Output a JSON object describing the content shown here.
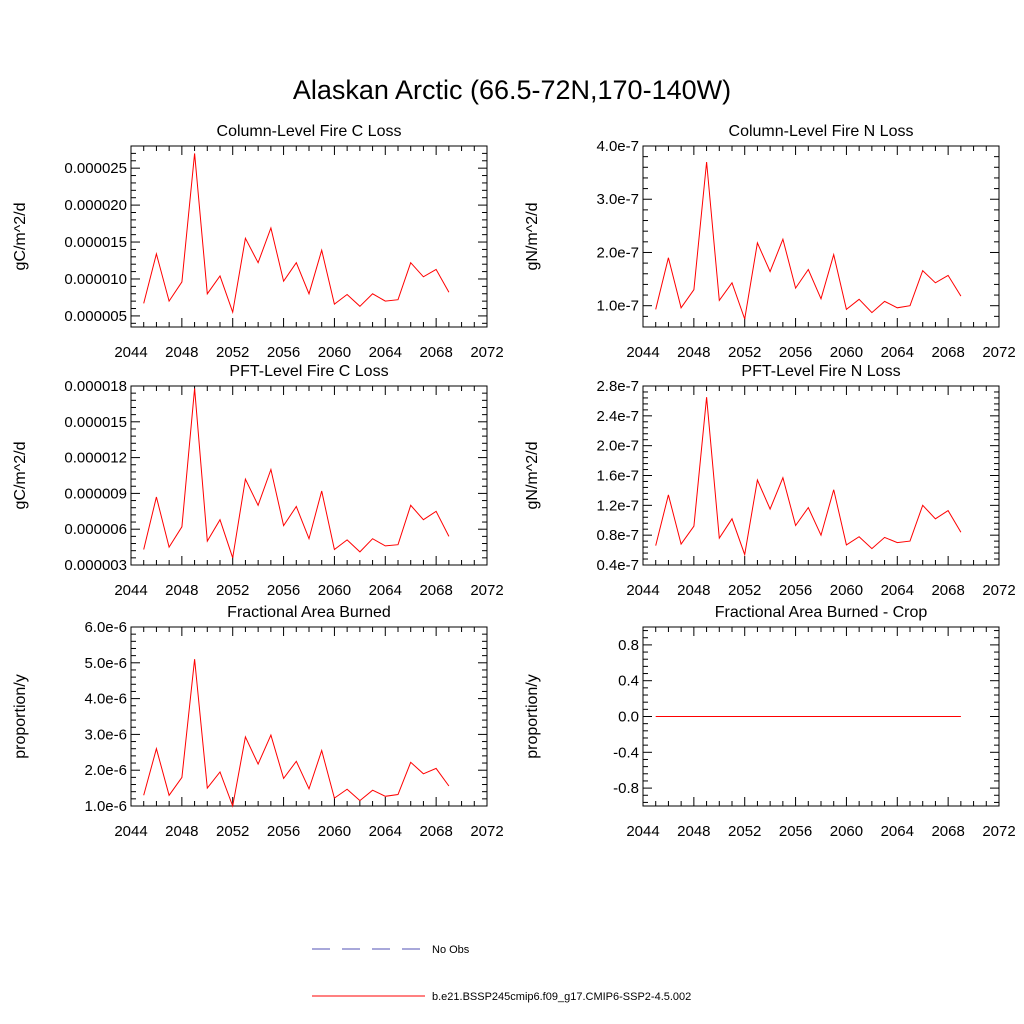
{
  "figure": {
    "title": "Alaskan Arctic (66.5-72N,170-140W)"
  },
  "chart_data": [
    {
      "type": "line",
      "title": "Column-Level Fire C Loss",
      "ylabel": "gC/m^2/d",
      "xlim": [
        2044,
        2072
      ],
      "x_ticks": [
        2044,
        2048,
        2052,
        2056,
        2060,
        2064,
        2068,
        2072
      ],
      "x_tick_labels": [
        "2044",
        "2048",
        "2052",
        "2056",
        "2060",
        "2064",
        "2068",
        "2072"
      ],
      "ylim": [
        3.5e-06,
        2.8e-05
      ],
      "y_ticks": [
        5e-06,
        1e-05,
        1.5e-05,
        2e-05,
        2.5e-05
      ],
      "y_tick_labels": [
        "0.000005",
        "0.000010",
        "0.000015",
        "0.000020",
        "0.000025"
      ],
      "x": [
        2045,
        2046,
        2047,
        2048,
        2049,
        2050,
        2051,
        2052,
        2053,
        2054,
        2055,
        2056,
        2057,
        2058,
        2059,
        2060,
        2061,
        2062,
        2063,
        2064,
        2065,
        2066,
        2067,
        2068,
        2069
      ],
      "series": [
        {
          "name": "b.e21.BSSP245cmip6.f09_g17.CMIP6-SSP2-4.5.002",
          "color": "#ff0000",
          "values": [
            6.7e-06,
            1.34e-05,
            7e-06,
            9.6e-06,
            2.7e-05,
            8e-06,
            1.04e-05,
            5.5e-06,
            1.55e-05,
            1.22e-05,
            1.69e-05,
            9.7e-06,
            1.22e-05,
            8e-06,
            1.39e-05,
            6.6e-06,
            7.9e-06,
            6.3e-06,
            8e-06,
            7e-06,
            7.2e-06,
            1.22e-05,
            1.03e-05,
            1.13e-05,
            8.2e-06
          ]
        }
      ]
    },
    {
      "type": "line",
      "title": "Column-Level Fire N Loss",
      "ylabel": "gN/m^2/d",
      "xlim": [
        2044,
        2072
      ],
      "x_ticks": [
        2044,
        2048,
        2052,
        2056,
        2060,
        2064,
        2068,
        2072
      ],
      "x_tick_labels": [
        "2044",
        "2048",
        "2052",
        "2056",
        "2060",
        "2064",
        "2068",
        "2072"
      ],
      "ylim": [
        6e-08,
        4e-07
      ],
      "y_ticks": [
        1e-07,
        2e-07,
        3e-07,
        4e-07
      ],
      "y_tick_labels": [
        "1.0e-7",
        "2.0e-7",
        "3.0e-7",
        "4.0e-7"
      ],
      "x": [
        2045,
        2046,
        2047,
        2048,
        2049,
        2050,
        2051,
        2052,
        2053,
        2054,
        2055,
        2056,
        2057,
        2058,
        2059,
        2060,
        2061,
        2062,
        2063,
        2064,
        2065,
        2066,
        2067,
        2068,
        2069
      ],
      "series": [
        {
          "name": "b.e21.BSSP245cmip6.f09_g17.CMIP6-SSP2-4.5.002",
          "color": "#ff0000",
          "values": [
            9.3e-08,
            1.9e-07,
            9.6e-08,
            1.3e-07,
            3.7e-07,
            1.1e-07,
            1.43e-07,
            7.5e-08,
            2.18e-07,
            1.64e-07,
            2.25e-07,
            1.33e-07,
            1.68e-07,
            1.13e-07,
            1.96e-07,
            9.3e-08,
            1.12e-07,
            8.7e-08,
            1.08e-07,
            9.6e-08,
            1e-07,
            1.66e-07,
            1.43e-07,
            1.57e-07,
            1.18e-07
          ]
        }
      ]
    },
    {
      "type": "line",
      "title": "PFT-Level Fire C Loss",
      "ylabel": "gC/m^2/d",
      "xlim": [
        2044,
        2072
      ],
      "x_ticks": [
        2044,
        2048,
        2052,
        2056,
        2060,
        2064,
        2068,
        2072
      ],
      "x_tick_labels": [
        "2044",
        "2048",
        "2052",
        "2056",
        "2060",
        "2064",
        "2068",
        "2072"
      ],
      "ylim": [
        3e-06,
        1.8e-05
      ],
      "y_ticks": [
        3e-06,
        6e-06,
        9e-06,
        1.2e-05,
        1.5e-05,
        1.8e-05
      ],
      "y_tick_labels": [
        "0.000003",
        "0.000006",
        "0.000009",
        "0.000012",
        "0.000015",
        "0.000018"
      ],
      "x": [
        2045,
        2046,
        2047,
        2048,
        2049,
        2050,
        2051,
        2052,
        2053,
        2054,
        2055,
        2056,
        2057,
        2058,
        2059,
        2060,
        2061,
        2062,
        2063,
        2064,
        2065,
        2066,
        2067,
        2068,
        2069
      ],
      "series": [
        {
          "name": "b.e21.BSSP245cmip6.f09_g17.CMIP6-SSP2-4.5.002",
          "color": "#ff0000",
          "values": [
            4.3e-06,
            8.7e-06,
            4.5e-06,
            6.2e-06,
            1.78e-05,
            5e-06,
            6.8e-06,
            3.6e-06,
            1.02e-05,
            8e-06,
            1.1e-05,
            6.3e-06,
            7.9e-06,
            5.2e-06,
            9.2e-06,
            4.3e-06,
            5.1e-06,
            4.1e-06,
            5.2e-06,
            4.6e-06,
            4.7e-06,
            8e-06,
            6.8e-06,
            7.5e-06,
            5.4e-06
          ]
        }
      ]
    },
    {
      "type": "line",
      "title": "PFT-Level Fire N Loss",
      "ylabel": "gN/m^2/d",
      "xlim": [
        2044,
        2072
      ],
      "x_ticks": [
        2044,
        2048,
        2052,
        2056,
        2060,
        2064,
        2068,
        2072
      ],
      "x_tick_labels": [
        "2044",
        "2048",
        "2052",
        "2056",
        "2060",
        "2064",
        "2068",
        "2072"
      ],
      "ylim": [
        4e-08,
        2.8e-07
      ],
      "y_ticks": [
        4e-08,
        8e-08,
        1.2e-07,
        1.6e-07,
        2e-07,
        2.4e-07,
        2.8e-07
      ],
      "y_tick_labels": [
        "0.4e-7",
        "0.8e-7",
        "1.2e-7",
        "1.6e-7",
        "2.0e-7",
        "2.4e-7",
        "2.8e-7"
      ],
      "x": [
        2045,
        2046,
        2047,
        2048,
        2049,
        2050,
        2051,
        2052,
        2053,
        2054,
        2055,
        2056,
        2057,
        2058,
        2059,
        2060,
        2061,
        2062,
        2063,
        2064,
        2065,
        2066,
        2067,
        2068,
        2069
      ],
      "series": [
        {
          "name": "b.e21.BSSP245cmip6.f09_g17.CMIP6-SSP2-4.5.002",
          "color": "#ff0000",
          "values": [
            6.6e-08,
            1.34e-07,
            6.8e-08,
            9.2e-08,
            2.65e-07,
            7.6e-08,
            1.02e-07,
            5.4e-08,
            1.54e-07,
            1.15e-07,
            1.57e-07,
            9.3e-08,
            1.17e-07,
            8e-08,
            1.41e-07,
            6.7e-08,
            7.8e-08,
            6.2e-08,
            7.7e-08,
            7e-08,
            7.2e-08,
            1.2e-07,
            1.02e-07,
            1.13e-07,
            8.4e-08
          ]
        }
      ]
    },
    {
      "type": "line",
      "title": "Fractional Area Burned",
      "ylabel": "proportion/y",
      "xlim": [
        2044,
        2072
      ],
      "x_ticks": [
        2044,
        2048,
        2052,
        2056,
        2060,
        2064,
        2068,
        2072
      ],
      "x_tick_labels": [
        "2044",
        "2048",
        "2052",
        "2056",
        "2060",
        "2064",
        "2068",
        "2072"
      ],
      "ylim": [
        1e-06,
        6e-06
      ],
      "y_ticks": [
        1e-06,
        2e-06,
        3e-06,
        4e-06,
        5e-06,
        6e-06
      ],
      "y_tick_labels": [
        "1.0e-6",
        "2.0e-6",
        "3.0e-6",
        "4.0e-6",
        "5.0e-6",
        "6.0e-6"
      ],
      "x": [
        2045,
        2046,
        2047,
        2048,
        2049,
        2050,
        2051,
        2052,
        2053,
        2054,
        2055,
        2056,
        2057,
        2058,
        2059,
        2060,
        2061,
        2062,
        2063,
        2064,
        2065,
        2066,
        2067,
        2068,
        2069
      ],
      "series": [
        {
          "name": "b.e21.BSSP245cmip6.f09_g17.CMIP6-SSP2-4.5.002",
          "color": "#ff0000",
          "values": [
            1.3e-06,
            2.6e-06,
            1.3e-06,
            1.8e-06,
            5.1e-06,
            1.5e-06,
            1.95e-06,
            1e-06,
            2.93e-06,
            2.17e-06,
            2.98e-06,
            1.77e-06,
            2.25e-06,
            1.48e-06,
            2.55e-06,
            1.22e-06,
            1.47e-06,
            1.15e-06,
            1.44e-06,
            1.27e-06,
            1.32e-06,
            2.22e-06,
            1.9e-06,
            2.05e-06,
            1.56e-06
          ]
        }
      ]
    },
    {
      "type": "line",
      "title": "Fractional Area Burned - Crop",
      "ylabel": "proportion/y",
      "xlim": [
        2044,
        2072
      ],
      "x_ticks": [
        2044,
        2048,
        2052,
        2056,
        2060,
        2064,
        2068,
        2072
      ],
      "x_tick_labels": [
        "2044",
        "2048",
        "2052",
        "2056",
        "2060",
        "2064",
        "2068",
        "2072"
      ],
      "ylim": [
        -1.0,
        1.0
      ],
      "y_ticks": [
        -0.8,
        -0.4,
        0.0,
        0.4,
        0.8
      ],
      "y_tick_labels": [
        "-0.8",
        "-0.4",
        "0.0",
        "0.4",
        "0.8"
      ],
      "x": [
        2045,
        2046,
        2047,
        2048,
        2049,
        2050,
        2051,
        2052,
        2053,
        2054,
        2055,
        2056,
        2057,
        2058,
        2059,
        2060,
        2061,
        2062,
        2063,
        2064,
        2065,
        2066,
        2067,
        2068,
        2069
      ],
      "series": [
        {
          "name": "b.e21.BSSP245cmip6.f09_g17.CMIP6-SSP2-4.5.002",
          "color": "#ff0000",
          "values": [
            0,
            0,
            0,
            0,
            0,
            0,
            0,
            0,
            0,
            0,
            0,
            0,
            0,
            0,
            0,
            0,
            0,
            0,
            0,
            0,
            0,
            0,
            0,
            0,
            0
          ]
        }
      ]
    }
  ],
  "legend": {
    "placement": "bottom-center",
    "entries": [
      {
        "label": "No Obs",
        "color": "#5050b4",
        "style": "dashed"
      },
      {
        "label": "b.e21.BSSP245cmip6.f09_g17.CMIP6-SSP2-4.5.002",
        "color": "#ff0000",
        "style": "solid"
      }
    ]
  }
}
